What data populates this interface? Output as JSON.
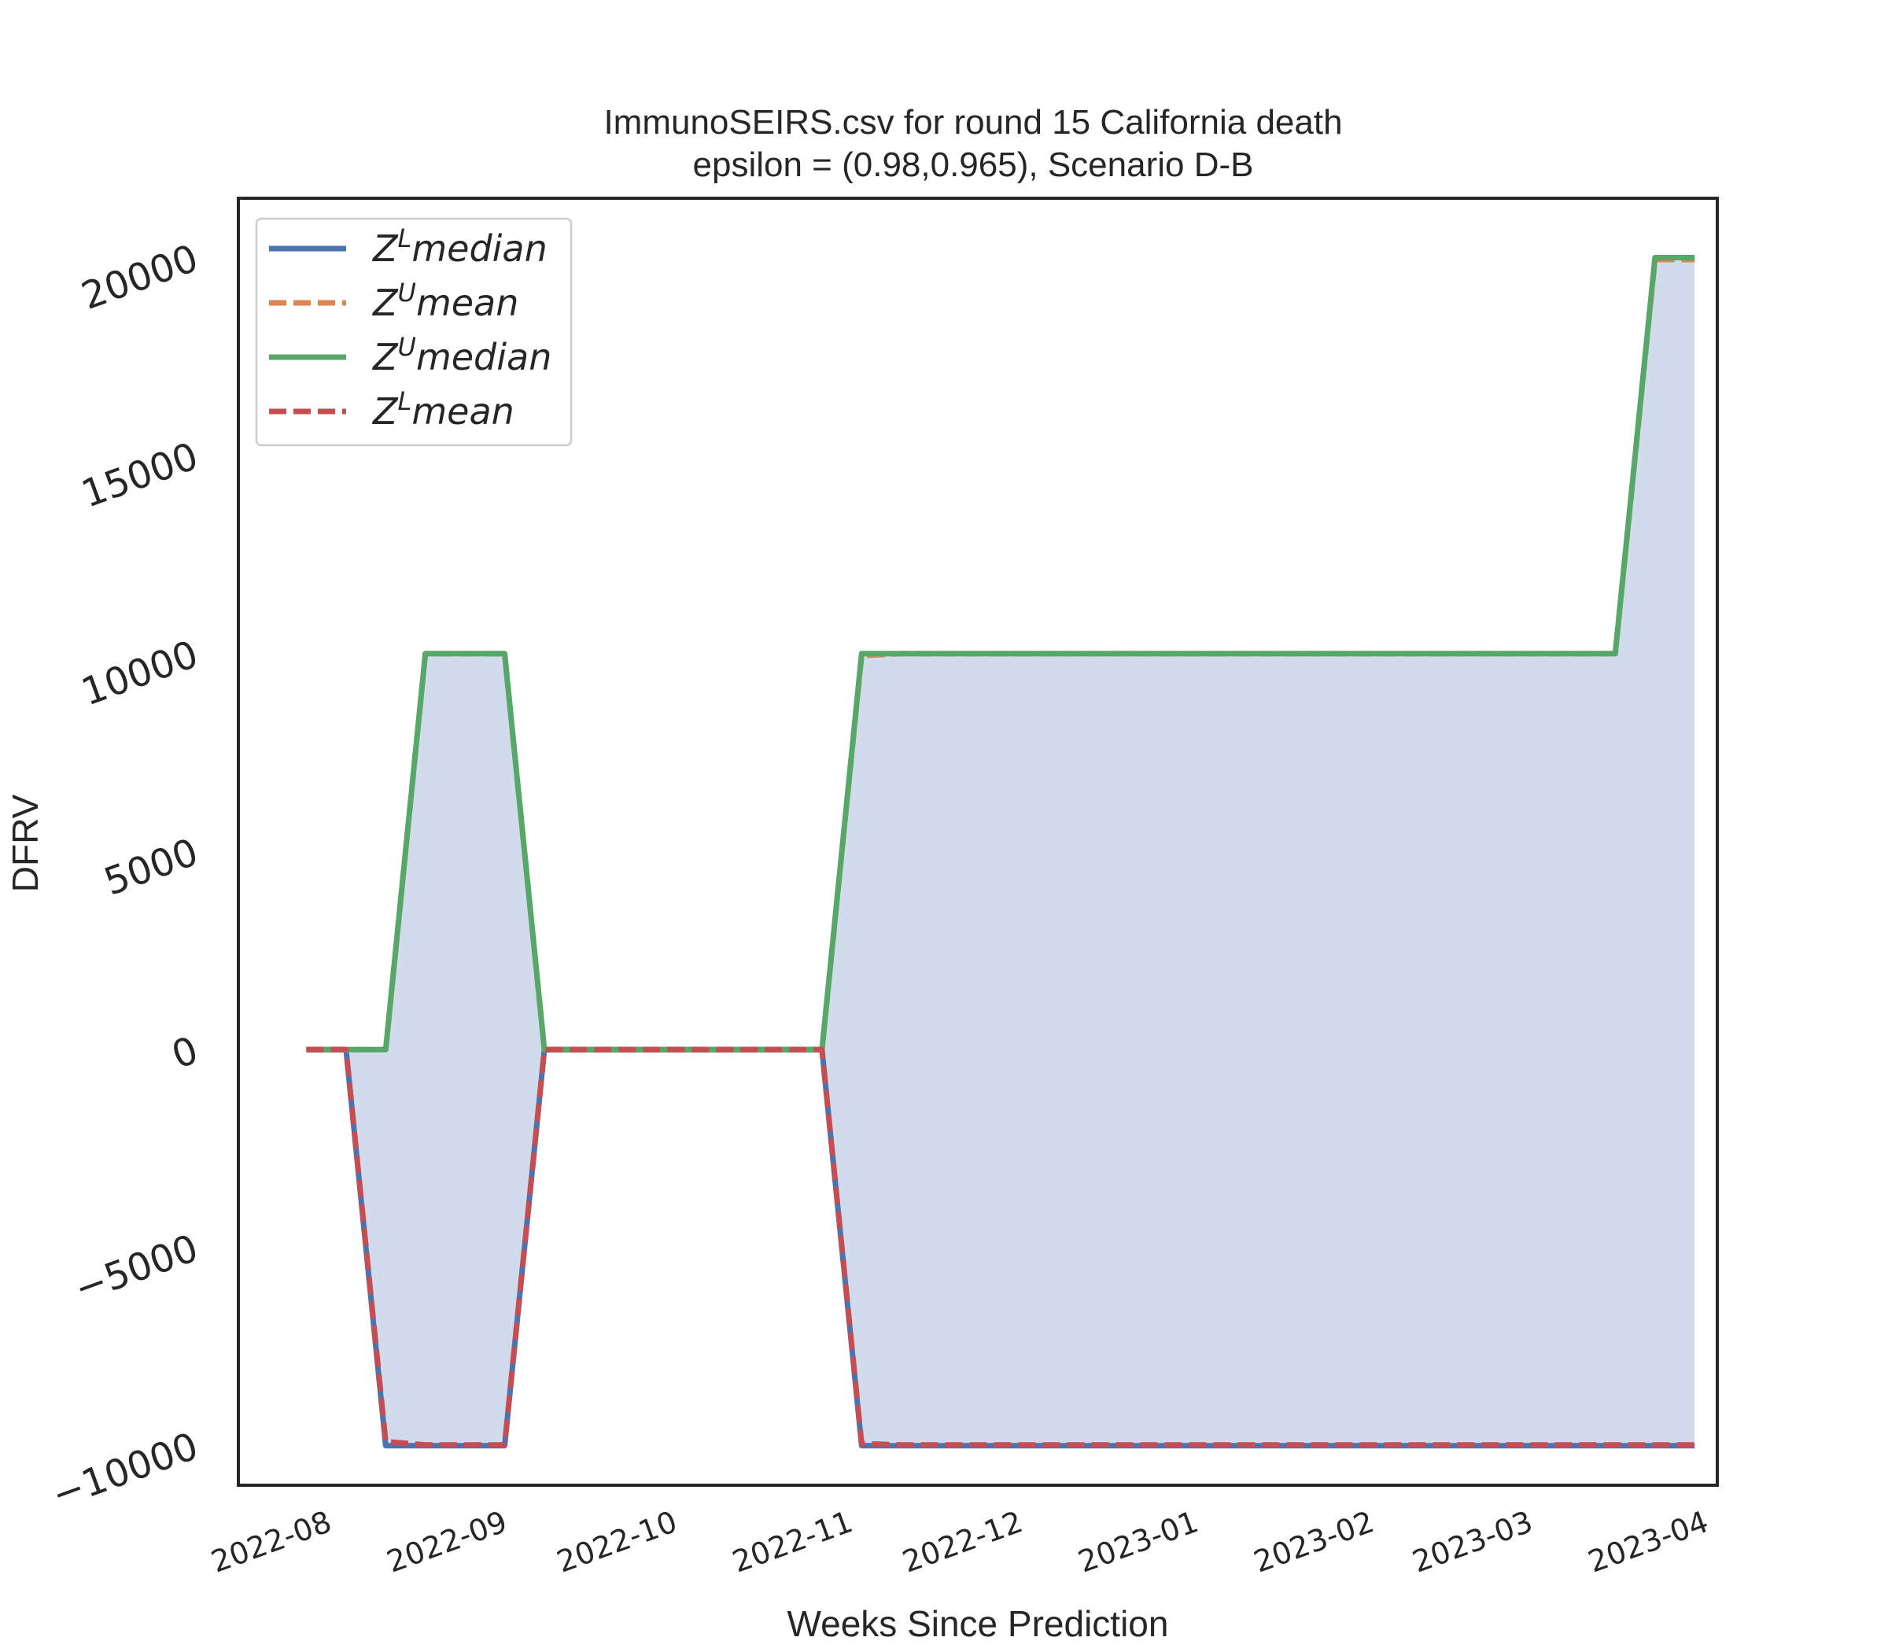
{
  "chart_data": {
    "type": "line",
    "title_line1": "ImmunoSEIRS.csv for round 15 California  death",
    "title_line2": "epsilon = (0.98,0.965), Scenario D-B",
    "xlabel": "Weeks Since Prediction",
    "ylabel": "DFRV",
    "ylim": [
      -11000,
      21500
    ],
    "xlim": [
      "2022-07-18",
      "2023-04-05"
    ],
    "grid": false,
    "legend_position": "upper-left",
    "y_ticks": [
      {
        "value": -10000,
        "label": "−10000"
      },
      {
        "value": -5000,
        "label": "−5000"
      },
      {
        "value": 0,
        "label": "0"
      },
      {
        "value": 5000,
        "label": "5000"
      },
      {
        "value": 10000,
        "label": "10000"
      },
      {
        "value": 15000,
        "label": "15000"
      },
      {
        "value": 20000,
        "label": "20000"
      }
    ],
    "x_ticks": [
      {
        "value": "2022-08-01",
        "label": "2022-08"
      },
      {
        "value": "2022-09-01",
        "label": "2022-09"
      },
      {
        "value": "2022-10-01",
        "label": "2022-10"
      },
      {
        "value": "2022-11-01",
        "label": "2022-11"
      },
      {
        "value": "2022-12-01",
        "label": "2022-12"
      },
      {
        "value": "2023-01-01",
        "label": "2023-01"
      },
      {
        "value": "2023-02-01",
        "label": "2023-02"
      },
      {
        "value": "2023-03-01",
        "label": "2023-03"
      },
      {
        "value": "2023-04-01",
        "label": "2023-04"
      }
    ],
    "x": [
      "2022-07-30",
      "2022-08-06",
      "2022-08-13",
      "2022-08-20",
      "2022-08-27",
      "2022-09-03",
      "2022-09-10",
      "2022-09-17",
      "2022-09-24",
      "2022-10-01",
      "2022-10-08",
      "2022-10-15",
      "2022-10-22",
      "2022-10-29",
      "2022-11-05",
      "2022-11-12",
      "2022-11-19",
      "2022-11-26",
      "2022-12-03",
      "2022-12-10",
      "2022-12-17",
      "2022-12-24",
      "2022-12-31",
      "2023-01-07",
      "2023-01-14",
      "2023-01-21",
      "2023-01-28",
      "2023-02-04",
      "2023-02-11",
      "2023-02-18",
      "2023-02-25",
      "2023-03-04",
      "2023-03-11",
      "2023-03-18",
      "2023-03-25",
      "2023-04-01"
    ],
    "fill_color": "#d2dbeb",
    "series": [
      {
        "name": "Z^L median",
        "legend_base": "Z",
        "legend_sup": "L",
        "legend_suffix": "median",
        "color": "#4c72b0",
        "dash": "solid",
        "values": [
          0,
          0,
          -10000,
          -10000,
          -10000,
          -10000,
          0,
          0,
          0,
          0,
          0,
          0,
          0,
          0,
          -10000,
          -10000,
          -10000,
          -10000,
          -10000,
          -10000,
          -10000,
          -10000,
          -10000,
          -10000,
          -10000,
          -10000,
          -10000,
          -10000,
          -10000,
          -10000,
          -10000,
          -10000,
          -10000,
          -10000,
          -10000,
          -10000
        ]
      },
      {
        "name": "Z^U mean",
        "legend_base": "Z",
        "legend_sup": "U",
        "legend_suffix": "mean",
        "color": "#dd8452",
        "dash": "dashed",
        "values": [
          0,
          0,
          0,
          10000,
          10000,
          10000,
          0,
          0,
          0,
          0,
          0,
          0,
          0,
          0,
          9950,
          10000,
          10000,
          10000,
          10000,
          10000,
          10000,
          10000,
          10000,
          10000,
          10000,
          10000,
          10000,
          10000,
          10000,
          10000,
          10000,
          10000,
          10000,
          10000,
          19950,
          19950
        ]
      },
      {
        "name": "Z^U median",
        "legend_base": "Z",
        "legend_sup": "U",
        "legend_suffix": "median",
        "color": "#55a868",
        "dash": "solid",
        "values": [
          0,
          0,
          0,
          10000,
          10000,
          10000,
          0,
          0,
          0,
          0,
          0,
          0,
          0,
          0,
          10000,
          10000,
          10000,
          10000,
          10000,
          10000,
          10000,
          10000,
          10000,
          10000,
          10000,
          10000,
          10000,
          10000,
          10000,
          10000,
          10000,
          10000,
          10000,
          10000,
          20000,
          20000
        ]
      },
      {
        "name": "Z^L mean",
        "legend_base": "Z",
        "legend_sup": "L",
        "legend_suffix": "mean",
        "color": "#c44e52",
        "dash": "dashed",
        "values": [
          0,
          0,
          -9900,
          -9980,
          -9980,
          -9980,
          0,
          0,
          0,
          0,
          0,
          0,
          0,
          0,
          -9950,
          -9980,
          -9980,
          -9980,
          -9980,
          -9980,
          -9980,
          -9980,
          -9980,
          -9980,
          -9980,
          -9980,
          -9980,
          -9980,
          -9980,
          -9980,
          -9980,
          -9980,
          -9980,
          -9980,
          -9980,
          -9980
        ]
      }
    ]
  }
}
